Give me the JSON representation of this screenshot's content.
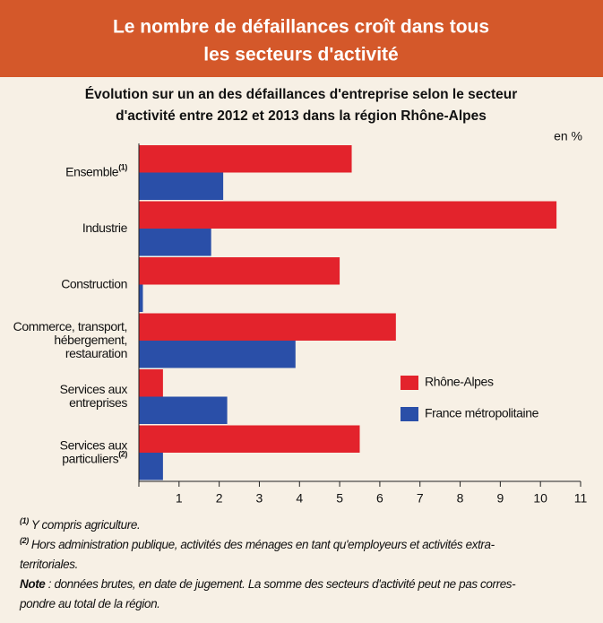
{
  "header": {
    "title_lines": [
      "Le nombre de défaillances croît dans tous",
      "les secteurs d'activité"
    ]
  },
  "chart_data": {
    "type": "barh",
    "subtitle_lines": [
      "Évolution sur un an des défaillances d'entreprise selon le secteur",
      "d'activité entre 2012 et 2013 dans la région Rhône-Alpes"
    ],
    "unit_label": "en %",
    "categories": [
      [
        "Ensemble"
      ],
      [
        "Industrie"
      ],
      [
        "Construction"
      ],
      [
        "Commerce, transport,",
        "hébergement,",
        "restauration"
      ],
      [
        "Services aux",
        "entreprises"
      ],
      [
        "Services aux",
        "particuliers"
      ]
    ],
    "category_notes": [
      "(1)",
      null,
      null,
      null,
      null,
      "(2)"
    ],
    "series": [
      {
        "name": "Rhône-Alpes",
        "color": "#e3232c",
        "values": [
          5.3,
          10.4,
          5.0,
          6.4,
          0.6,
          5.5
        ]
      },
      {
        "name": "France métropolitaine",
        "color": "#2a4fa8",
        "values": [
          2.1,
          1.8,
          0.1,
          3.9,
          2.2,
          0.6
        ]
      }
    ],
    "xlim": [
      0,
      11
    ],
    "xticks": [
      1,
      2,
      3,
      4,
      5,
      6,
      7,
      8,
      9,
      10,
      11
    ]
  },
  "notes": [
    {
      "mark": "(1)",
      "lines": [
        "Y compris agriculture."
      ]
    },
    {
      "mark": "(2)",
      "lines": [
        "Hors administration publique, activités des ménages en tant qu'employeurs et activités extra-",
        "territoriales."
      ]
    },
    {
      "mark": "Note",
      "lines": [
        " : données brutes, en date de jugement. La somme des secteurs d'activité peut ne pas corres-",
        "pondre au total de la région."
      ]
    }
  ]
}
